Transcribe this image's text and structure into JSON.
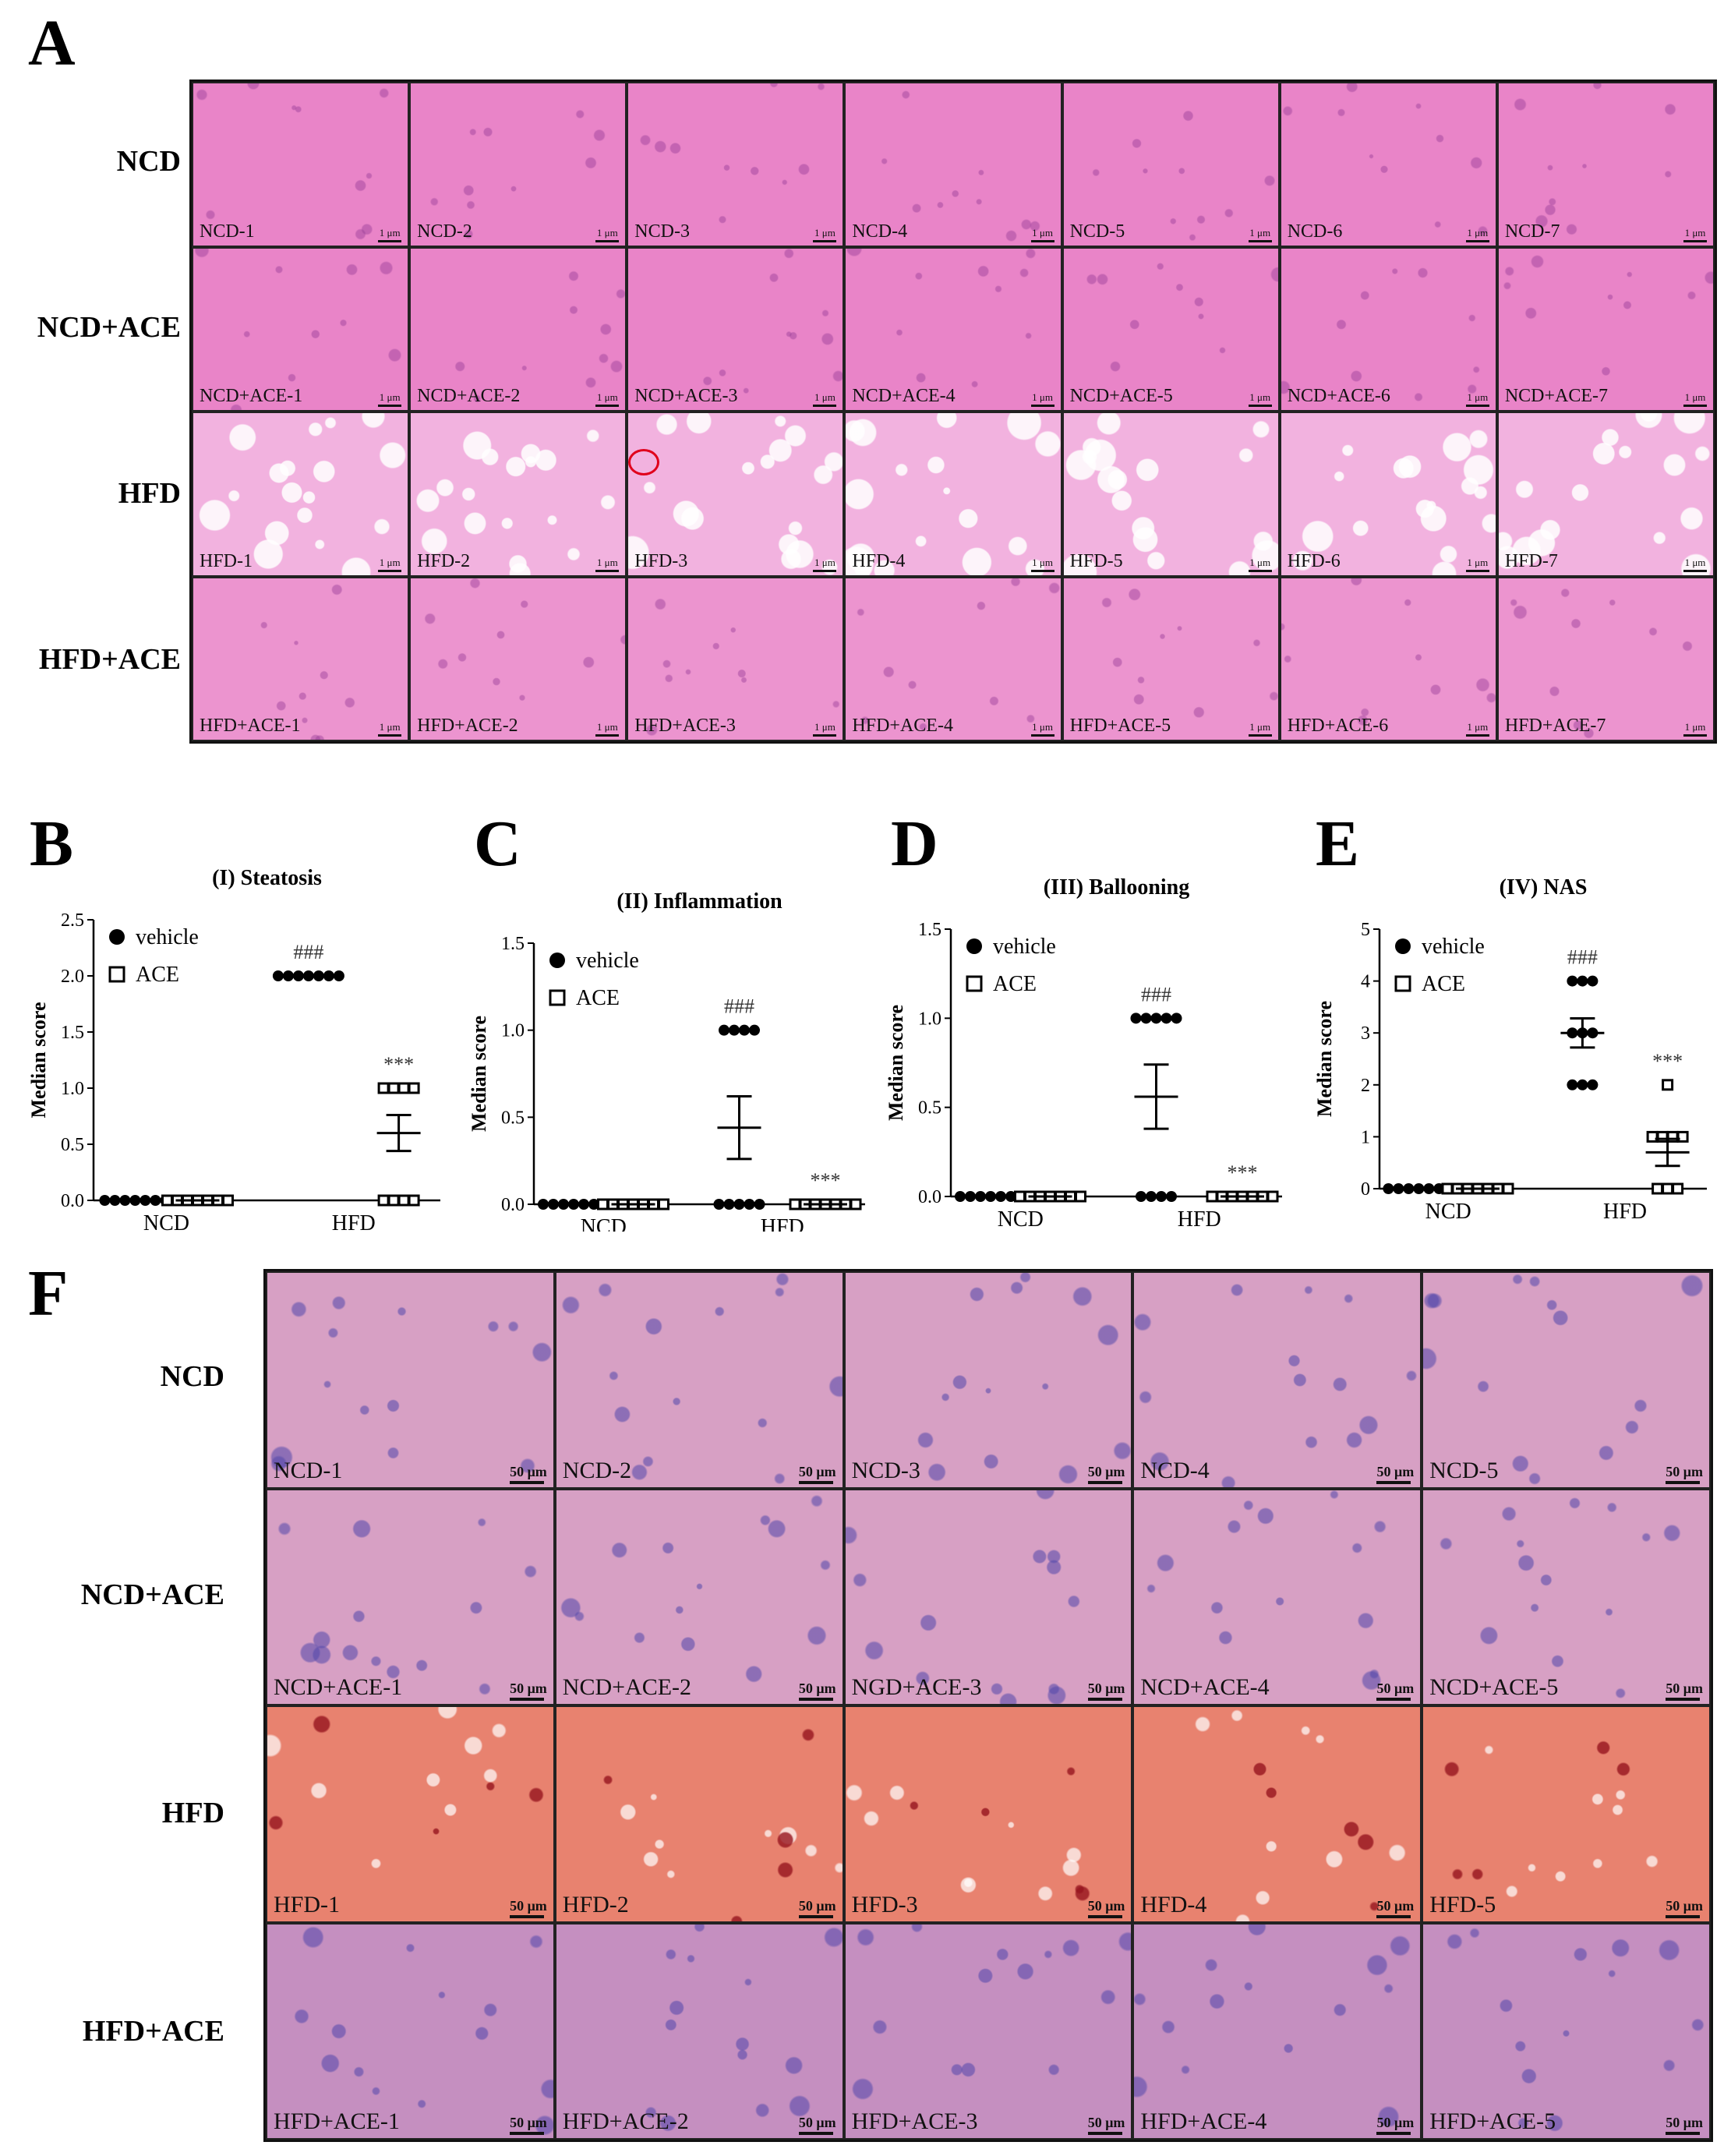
{
  "panel_a": {
    "letter": "A",
    "row_labels": [
      "NCD",
      "NCD+ACE",
      "HFD",
      "HFD+ACE"
    ],
    "rows": [
      {
        "group": "NCD",
        "captions": [
          "NCD-1",
          "NCD-2",
          "NCD-3",
          "NCD-4",
          "NCD-5",
          "NCD-6",
          "NCD-7"
        ]
      },
      {
        "group": "NCD+ACE",
        "captions": [
          "NCD+ACE-1",
          "NCD+ACE-2",
          "NCD+ACE-3",
          "NCD+ACE-4",
          "NCD+ACE-5",
          "NCD+ACE-6",
          "NCD+ACE-7"
        ]
      },
      {
        "group": "HFD",
        "captions": [
          "HFD-1",
          "HFD-2",
          "HFD-3",
          "HFD-4",
          "HFD-5",
          "HFD-6",
          "HFD-7"
        ]
      },
      {
        "group": "HFD+ACE",
        "captions": [
          "HFD+ACE-1",
          "HFD+ACE-2",
          "HFD+ACE-3",
          "HFD+ACE-4",
          "HFD+ACE-5",
          "HFD+ACE-6",
          "HFD+ACE-7"
        ]
      }
    ],
    "scale_label": "1 μm",
    "colors": {
      "ncd": "#e982c8",
      "hfd": "#f0a4d8",
      "stain_dark": "#b04fa0"
    }
  },
  "charts": [
    {
      "letter": "B",
      "chart_data": {
        "type": "scatter",
        "title": "(I) Steatosis",
        "ylabel": "Median score",
        "categories": [
          "NCD",
          "HFD"
        ],
        "ylim": [
          0,
          2.5
        ],
        "yticks": [
          "0.0",
          "0.5",
          "1.0",
          "1.5",
          "2.0",
          "2.5"
        ],
        "series": [
          {
            "name": "vehicle",
            "marker": "filled-circle",
            "values": [
              [
                0,
                0,
                0,
                0,
                0,
                0,
                0
              ],
              [
                2,
                2,
                2,
                2,
                2,
                2,
                2
              ]
            ],
            "mean": [
              0,
              2.0
            ],
            "sem": [
              0,
              0
            ]
          },
          {
            "name": "ACE",
            "marker": "open-square",
            "values": [
              [
                0,
                0,
                0,
                0,
                0,
                0,
                0
              ],
              [
                1,
                1,
                1,
                0,
                0,
                0,
                0,
                1
              ]
            ],
            "mean": [
              0,
              0.6
            ],
            "sem": [
              0,
              0.16
            ]
          }
        ],
        "annotations": [
          {
            "text": "###",
            "category": "HFD",
            "series": "vehicle"
          },
          {
            "text": "***",
            "category": "HFD",
            "series": "ACE"
          }
        ]
      }
    },
    {
      "letter": "C",
      "chart_data": {
        "type": "scatter",
        "title": "(II) Inflammation",
        "ylabel": "Median score",
        "categories": [
          "NCD",
          "HFD"
        ],
        "ylim": [
          0,
          1.5
        ],
        "yticks": [
          "0.0",
          "0.5",
          "1.0",
          "1.5"
        ],
        "series": [
          {
            "name": "vehicle",
            "marker": "filled-circle",
            "values": [
              [
                0,
                0,
                0,
                0,
                0,
                0,
                0
              ],
              [
                1,
                1,
                1,
                1,
                0,
                0,
                0,
                0,
                0
              ]
            ],
            "mean": [
              0,
              0.44
            ],
            "sem": [
              0,
              0.18
            ]
          },
          {
            "name": "ACE",
            "marker": "open-square",
            "values": [
              [
                0,
                0,
                0,
                0,
                0,
                0,
                0
              ],
              [
                0,
                0,
                0,
                0,
                0,
                0,
                0
              ]
            ],
            "mean": [
              0,
              0
            ],
            "sem": [
              0,
              0
            ]
          }
        ],
        "annotations": [
          {
            "text": "###",
            "category": "HFD",
            "series": "vehicle"
          },
          {
            "text": "***",
            "category": "HFD",
            "series": "ACE"
          }
        ]
      }
    },
    {
      "letter": "D",
      "chart_data": {
        "type": "scatter",
        "title": "(III) Ballooning",
        "ylabel": "Median score",
        "categories": [
          "NCD",
          "HFD"
        ],
        "ylim": [
          0,
          1.5
        ],
        "yticks": [
          "0.0",
          "0.5",
          "1.0",
          "1.5"
        ],
        "series": [
          {
            "name": "vehicle",
            "marker": "filled-circle",
            "values": [
              [
                0,
                0,
                0,
                0,
                0,
                0,
                0
              ],
              [
                1,
                1,
                1,
                1,
                1,
                0,
                0,
                0,
                0
              ]
            ],
            "mean": [
              0,
              0.56
            ],
            "sem": [
              0,
              0.18
            ]
          },
          {
            "name": "ACE",
            "marker": "open-square",
            "values": [
              [
                0,
                0,
                0,
                0,
                0,
                0,
                0
              ],
              [
                0,
                0,
                0,
                0,
                0,
                0,
                0
              ]
            ],
            "mean": [
              0,
              0
            ],
            "sem": [
              0,
              0
            ]
          }
        ],
        "annotations": [
          {
            "text": "###",
            "category": "HFD",
            "series": "vehicle"
          },
          {
            "text": "***",
            "category": "HFD",
            "series": "ACE"
          }
        ]
      }
    },
    {
      "letter": "E",
      "chart_data": {
        "type": "scatter",
        "title": "(IV) NAS",
        "ylabel": "Median score",
        "categories": [
          "NCD",
          "HFD"
        ],
        "ylim": [
          0,
          5
        ],
        "yticks": [
          "0",
          "1",
          "2",
          "3",
          "4",
          "5"
        ],
        "series": [
          {
            "name": "vehicle",
            "marker": "filled-circle",
            "values": [
              [
                0,
                0,
                0,
                0,
                0,
                0,
                0
              ],
              [
                4,
                4,
                4,
                3,
                3,
                3,
                2,
                2,
                2
              ]
            ],
            "mean": [
              0,
              3.0
            ],
            "sem": [
              0,
              0.28
            ]
          },
          {
            "name": "ACE",
            "marker": "open-square",
            "values": [
              [
                0,
                0,
                0,
                0,
                0,
                0,
                0
              ],
              [
                2,
                1,
                1,
                1,
                1,
                0,
                0,
                0
              ]
            ],
            "mean": [
              0,
              0.7
            ],
            "sem": [
              0,
              0.26
            ]
          }
        ],
        "annotations": [
          {
            "text": "###",
            "category": "HFD",
            "series": "vehicle"
          },
          {
            "text": "***",
            "category": "HFD",
            "series": "ACE"
          }
        ]
      }
    }
  ],
  "panel_f": {
    "letter": "F",
    "row_labels": [
      "NCD",
      "NCD+ACE",
      "HFD",
      "HFD+ACE"
    ],
    "rows": [
      {
        "group": "NCD",
        "captions": [
          "NCD-1",
          "NCD-2",
          "NCD-3",
          "NCD-4",
          "NCD-5"
        ]
      },
      {
        "group": "NCD+ACE",
        "captions": [
          "NCD+ACE-1",
          "NCD+ACE-2",
          "NGD+ACE-3",
          "NCD+ACE-4",
          "NCD+ACE-5"
        ]
      },
      {
        "group": "HFD",
        "captions": [
          "HFD-1",
          "HFD-2",
          "HFD-3",
          "HFD-4",
          "HFD-5"
        ]
      },
      {
        "group": "HFD+ACE",
        "captions": [
          "HFD+ACE-1",
          "HFD+ACE-2",
          "HFD+ACE-3",
          "HFD+ACE-4",
          "HFD+ACE-5"
        ]
      }
    ],
    "scale_label": "50 μm"
  }
}
